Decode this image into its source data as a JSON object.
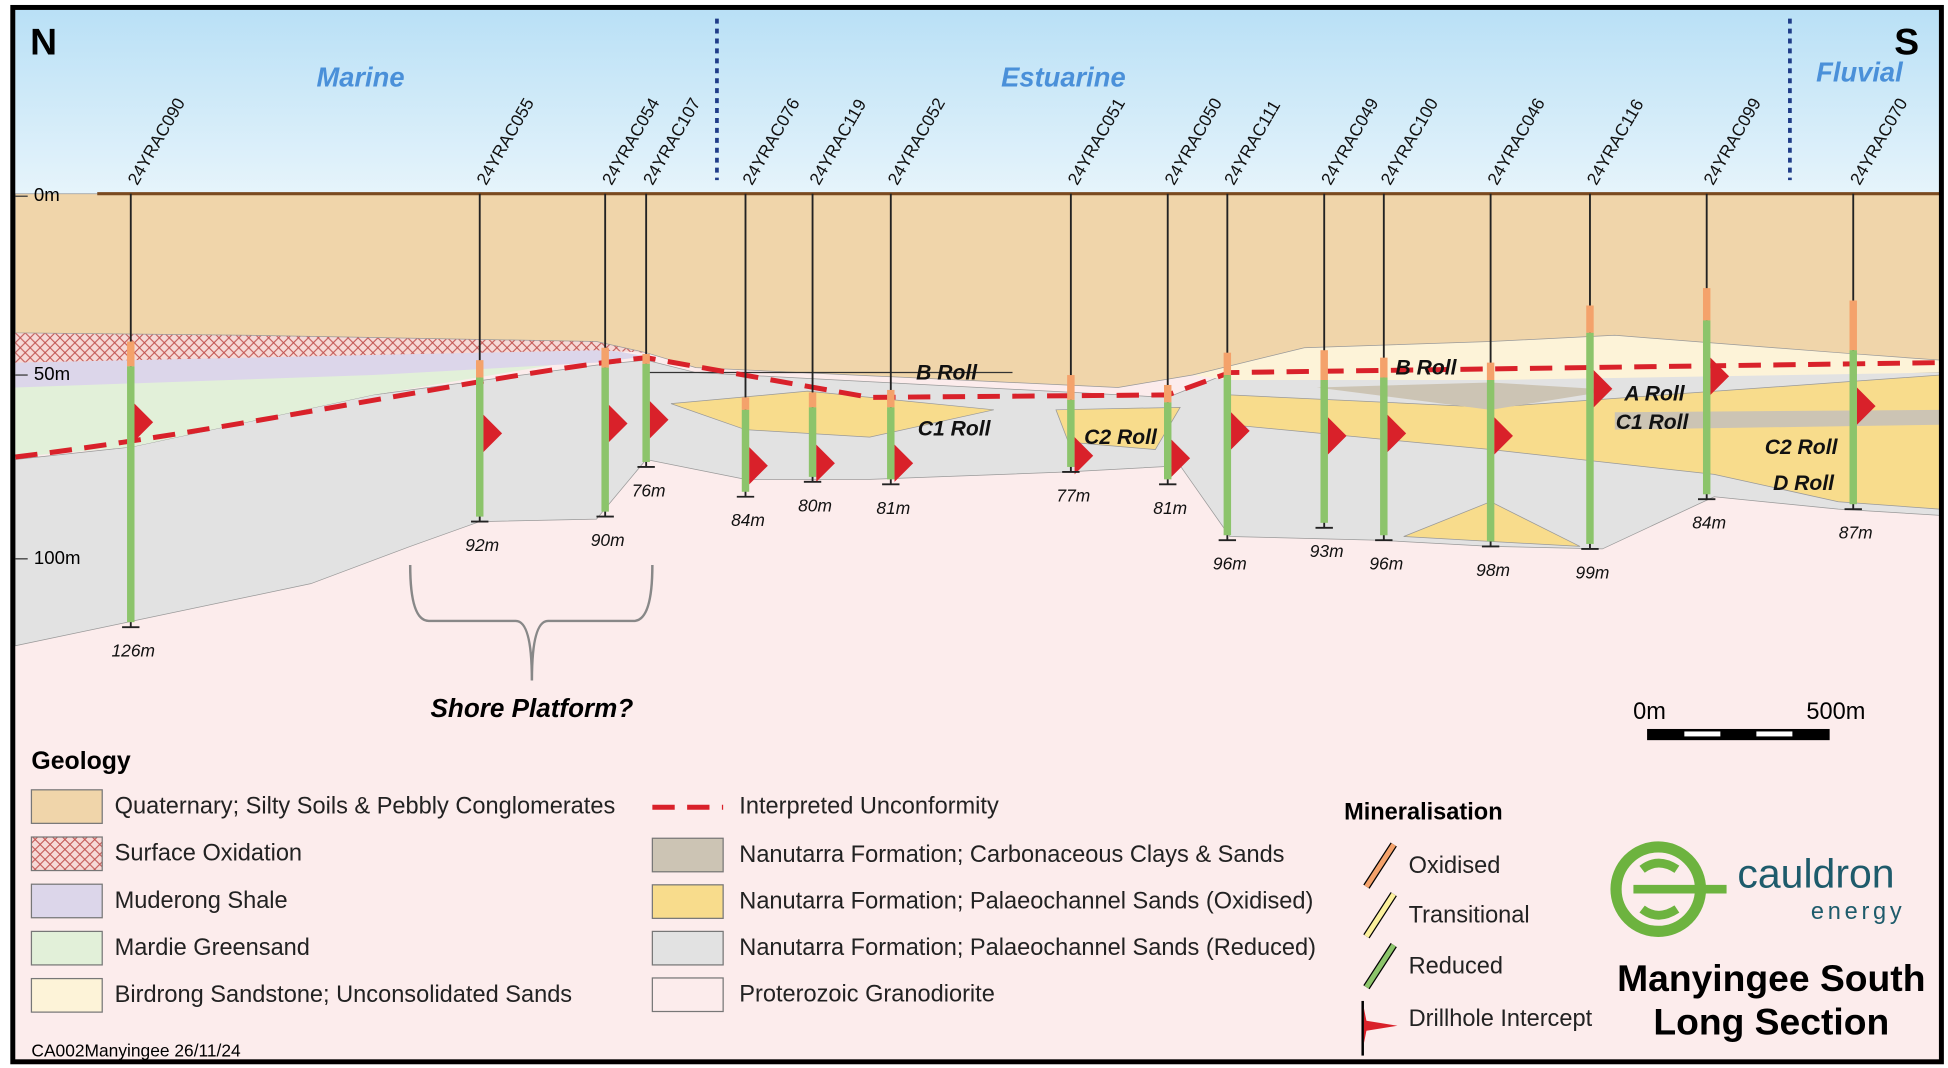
{
  "header": {
    "north": "N",
    "south": "S",
    "zones": [
      "Marine",
      "Estuarine",
      "Fluvial"
    ]
  },
  "depth_axis": [
    "0m",
    "50m",
    "100m"
  ],
  "drillholes": [
    {
      "name": "24YRAC090",
      "depth": "126m"
    },
    {
      "name": "24YRAC055",
      "depth": "92m"
    },
    {
      "name": "24YRAC054",
      "depth": "90m"
    },
    {
      "name": "24YRAC107",
      "depth": "76m"
    },
    {
      "name": "24YRAC076",
      "depth": "84m"
    },
    {
      "name": "24YRAC119",
      "depth": "80m"
    },
    {
      "name": "24YRAC052",
      "depth": "81m"
    },
    {
      "name": "24YRAC051",
      "depth": "77m"
    },
    {
      "name": "24YRAC050",
      "depth": "81m"
    },
    {
      "name": "24YRAC111",
      "depth": "96m"
    },
    {
      "name": "24YRAC049",
      "depth": "93m"
    },
    {
      "name": "24YRAC100",
      "depth": "96m"
    },
    {
      "name": "24YRAC046",
      "depth": "98m"
    },
    {
      "name": "24YRAC116",
      "depth": "99m"
    },
    {
      "name": "24YRAC099",
      "depth": "84m"
    },
    {
      "name": "24YRAC070",
      "depth": "87m"
    }
  ],
  "section_labels": [
    "B Roll",
    "C1 Roll",
    "C2 Roll",
    "B Roll",
    "A Roll",
    "C1 Roll",
    "C2 Roll",
    "D Roll"
  ],
  "annotation": "Shore Platform?",
  "scale_bar": [
    "0m",
    "500m"
  ],
  "legend": {
    "geology_title": "Geology",
    "geology": [
      "Quaternary; Silty Soils & Pebbly Conglomerates",
      "Surface Oxidation",
      "Muderong Shale",
      "Mardie Greensand",
      "Birdrong Sandstone; Unconsolidated Sands",
      "Nanutarra Formation; Carbonaceous Clays & Sands",
      "Nanutarra Formation; Palaeochannel Sands (Oxidised)",
      "Nanutarra Formation; Palaeochannel Sands (Reduced)",
      "Proterozoic Granodiorite"
    ],
    "unconformity": "Interpreted Unconformity",
    "mineralisation_title": "Mineralisation",
    "mineralisation": [
      "Oxidised",
      "Transitional",
      "Reduced",
      "Drillhole Intercept"
    ]
  },
  "logo": {
    "name": "cauldron",
    "tagline": "energy"
  },
  "title": [
    "Manyingee South",
    "Long Section"
  ],
  "footer": "CA002Manyingee 26/11/24"
}
